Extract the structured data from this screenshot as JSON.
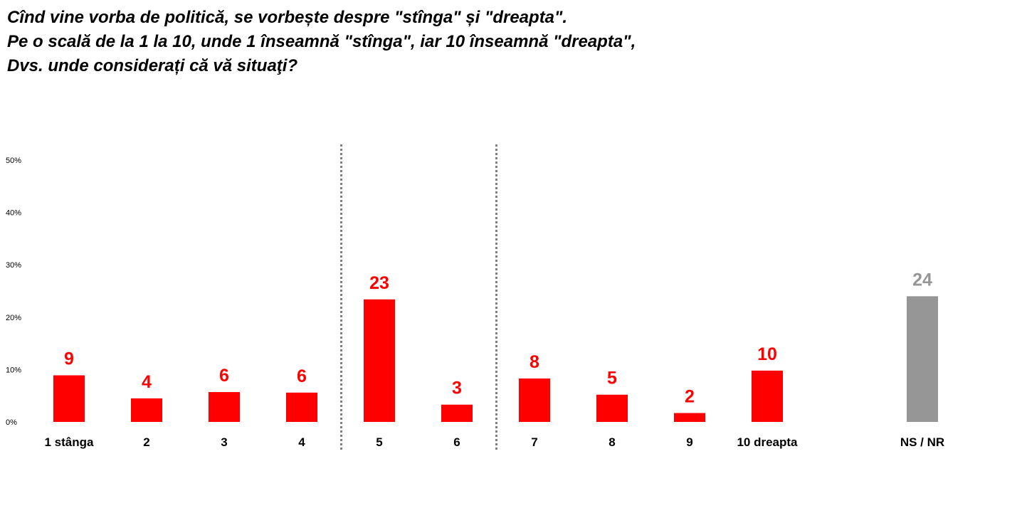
{
  "title_lines": [
    "Cînd vine vorba de politică, se vorbește despre \"stînga\" și \"dreapta\".",
    "Pe o scală de la 1 la 10, unde 1 înseamnă \"stînga\", iar 10 înseamnă \"dreapta\",",
    "Dvs. unde considerați că vă situaţi?"
  ],
  "colors": {
    "main": "#ff0000",
    "other": "#969696",
    "divider": "#808080"
  },
  "chart_data": {
    "type": "bar",
    "categories": [
      "1 stânga",
      "2",
      "3",
      "4",
      "5",
      "6",
      "7",
      "8",
      "9",
      "10 dreapta",
      "NS / NR"
    ],
    "values": [
      9,
      4,
      6,
      6,
      23,
      3,
      8,
      5,
      2,
      10,
      24
    ],
    "data_labels": [
      "9",
      "4",
      "6",
      "6",
      "23",
      "3",
      "8",
      "5",
      "2",
      "10",
      "24"
    ],
    "bar_values": [
      8.9,
      4.5,
      5.7,
      5.6,
      23.4,
      3.3,
      8.3,
      5.2,
      1.7,
      9.8,
      24
    ],
    "y_ticks": [
      "0%",
      "10%",
      "20%",
      "30%",
      "40%",
      "50%"
    ],
    "y_tick_values": [
      0,
      10,
      20,
      30,
      40,
      50
    ],
    "ylim": [
      0,
      50
    ],
    "dividers_after": [
      "4",
      "6"
    ],
    "grid": false,
    "legend": "none"
  }
}
